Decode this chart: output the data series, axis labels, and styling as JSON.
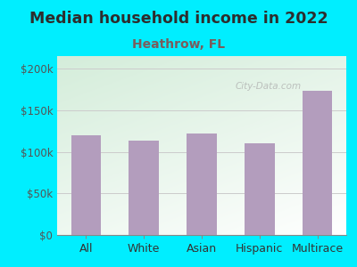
{
  "title": "Median household income in 2022",
  "subtitle": "Heathrow, FL",
  "categories": [
    "All",
    "White",
    "Asian",
    "Hispanic",
    "Multirace"
  ],
  "values": [
    120000,
    113000,
    122000,
    110000,
    173000
  ],
  "bar_color": "#b39dbd",
  "title_fontsize": 12.5,
  "subtitle_fontsize": 10,
  "title_color": "#2d2d2d",
  "subtitle_color": "#7a5c5c",
  "bg_outer": "#00eeff",
  "yticks": [
    0,
    50000,
    100000,
    150000,
    200000
  ],
  "ytick_labels": [
    "$0",
    "$50k",
    "$100k",
    "$150k",
    "$200k"
  ],
  "ylim": [
    0,
    215000
  ],
  "watermark": "City-Data.com",
  "grid_color": "#cccccc"
}
